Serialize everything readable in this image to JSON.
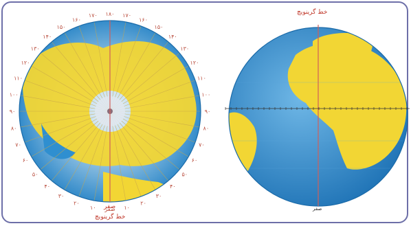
{
  "labels": {
    "meridian_right": "خط گرینویچ",
    "meridian_left": "خط گرینویچ",
    "zero_left": "صفر",
    "zero_right": "صفر"
  },
  "longitude_ticks": [
    "۱۸۰",
    "۱۷۰",
    "۱۶۰",
    "۱۵۰",
    "۱۴۰",
    "۱۳۰",
    "۱۲۰",
    "۱۱۰",
    "۱۰۰",
    "۹۰",
    "۸۰",
    "۷۰",
    "۶۰",
    "۵۰",
    "۴۰",
    "۳۰",
    "۲۰",
    "۱۰",
    "صفر",
    "۱۰",
    "۲۰",
    "۳۰",
    "۴۰",
    "۵۰",
    "۶۰",
    "۷۰",
    "۸۰",
    "۹۰",
    "۱۰۰",
    "۱۱۰",
    "۱۲۰",
    "۱۳۰",
    "۱۴۰",
    "۱۵۰",
    "۱۶۰",
    "۱۷۰"
  ],
  "colors": {
    "frame": "#6d6fa8",
    "ocean": "#2f8fd0",
    "land": "#f2d634",
    "meridian": "#d0605a",
    "label": "#c0392b"
  }
}
